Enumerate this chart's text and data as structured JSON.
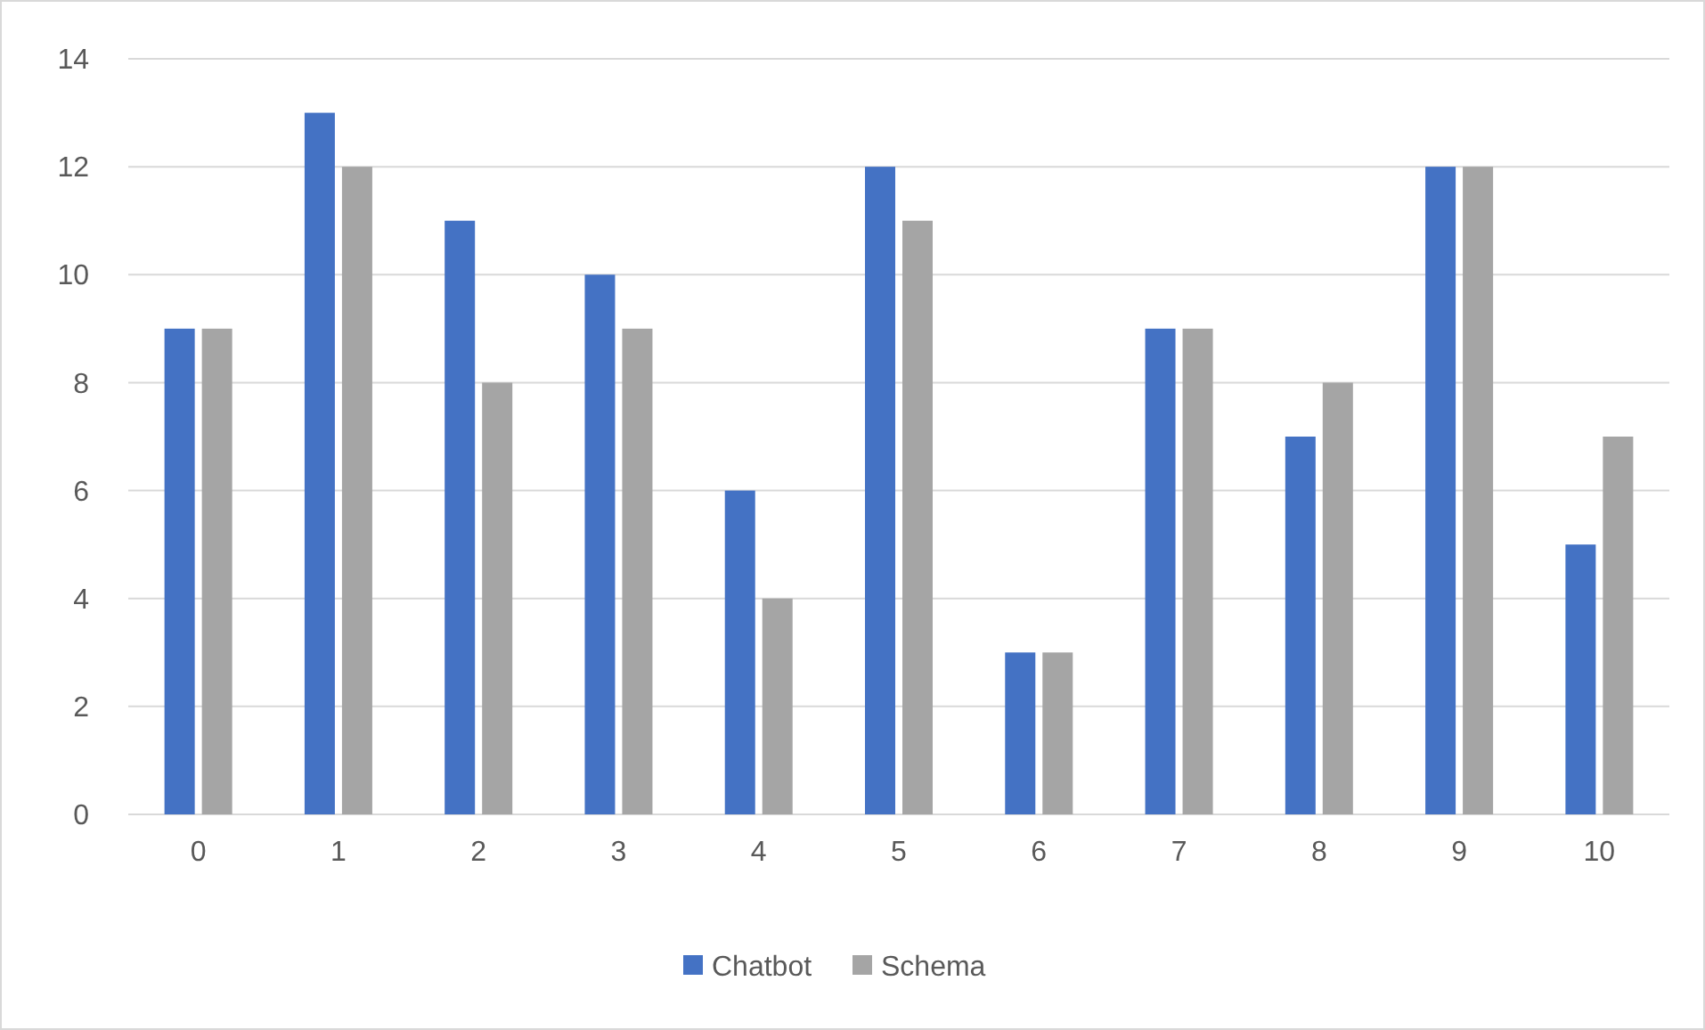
{
  "chart_data": {
    "type": "bar",
    "categories": [
      "0",
      "1",
      "2",
      "3",
      "4",
      "5",
      "6",
      "7",
      "8",
      "9",
      "10"
    ],
    "series": [
      {
        "name": "Chatbot",
        "color": "#4472c4",
        "values": [
          9,
          13,
          11,
          10,
          6,
          12,
          3,
          9,
          7,
          12,
          5
        ]
      },
      {
        "name": "Schema",
        "color": "#a5a5a5",
        "values": [
          9,
          12,
          8,
          9,
          4,
          11,
          3,
          9,
          8,
          12,
          7
        ]
      }
    ],
    "ylim": [
      0,
      14
    ],
    "yticks": [
      0,
      2,
      4,
      6,
      8,
      10,
      12,
      14
    ],
    "grid": "y",
    "legend": "bottom"
  }
}
